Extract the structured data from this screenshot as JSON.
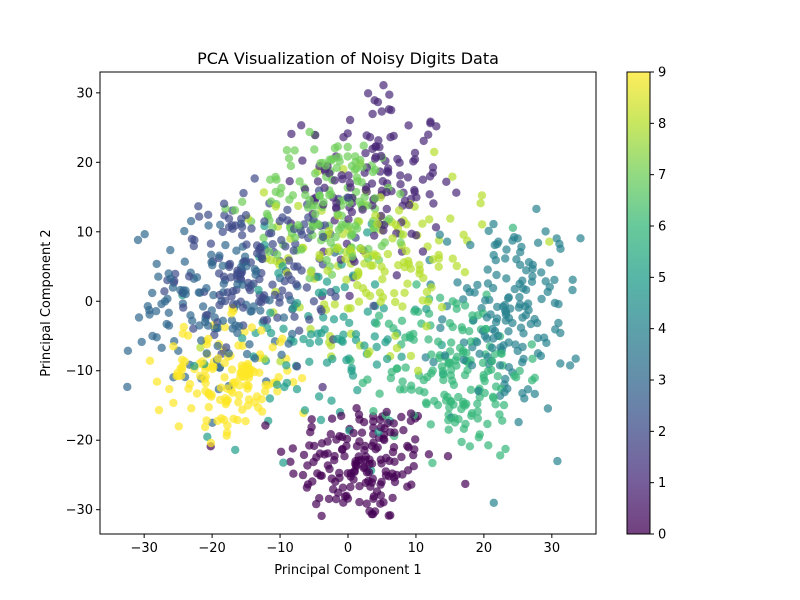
{
  "chart_data": {
    "type": "scatter",
    "title": "PCA Visualization of Noisy Digits Data",
    "xlabel": "Principal Component 1",
    "ylabel": "Principal Component 2",
    "xlim": [
      -36.5,
      36.5
    ],
    "ylim": [
      -33.5,
      33
    ],
    "xticks": [
      -30,
      -20,
      -10,
      0,
      10,
      20,
      30
    ],
    "yticks": [
      -30,
      -20,
      -10,
      0,
      10,
      20,
      30
    ],
    "grid": false,
    "colormap": "viridis",
    "colorbar": {
      "min": 0,
      "max": 9,
      "ticks": [
        0,
        1,
        2,
        3,
        4,
        5,
        6,
        7,
        8,
        9
      ]
    },
    "point_alpha": 0.7,
    "clusters": [
      {
        "label": 0,
        "center": [
          2,
          -23
        ],
        "spread": [
          5.5,
          4.5
        ],
        "n": 170
      },
      {
        "label": 1,
        "center": [
          4,
          17
        ],
        "spread": [
          5,
          7
        ],
        "n": 140
      },
      {
        "label": 2,
        "center": [
          -13,
          5
        ],
        "spread": [
          6,
          5
        ],
        "n": 160
      },
      {
        "label": 3,
        "center": [
          -20,
          -1
        ],
        "spread": [
          6,
          6
        ],
        "n": 120
      },
      {
        "label": 4,
        "center": [
          24,
          -2
        ],
        "spread": [
          5,
          7
        ],
        "n": 160
      },
      {
        "label": 5,
        "center": [
          -4,
          -6
        ],
        "spread": [
          8,
          7
        ],
        "n": 100
      },
      {
        "label": 6,
        "center": [
          16,
          -10
        ],
        "spread": [
          5,
          6
        ],
        "n": 170
      },
      {
        "label": 7,
        "center": [
          -2,
          14
        ],
        "spread": [
          6,
          5
        ],
        "n": 150
      },
      {
        "label": 8,
        "center": [
          4,
          6
        ],
        "spread": [
          8,
          6
        ],
        "n": 150
      },
      {
        "label": 9,
        "center": [
          -18,
          -11
        ],
        "spread": [
          5,
          4
        ],
        "n": 140
      }
    ]
  },
  "colors": {
    "viridis": [
      "#440154",
      "#482878",
      "#3e4a89",
      "#31688e",
      "#26828e",
      "#1f9e89",
      "#35b779",
      "#6ece58",
      "#b5de2b",
      "#fde725"
    ]
  }
}
